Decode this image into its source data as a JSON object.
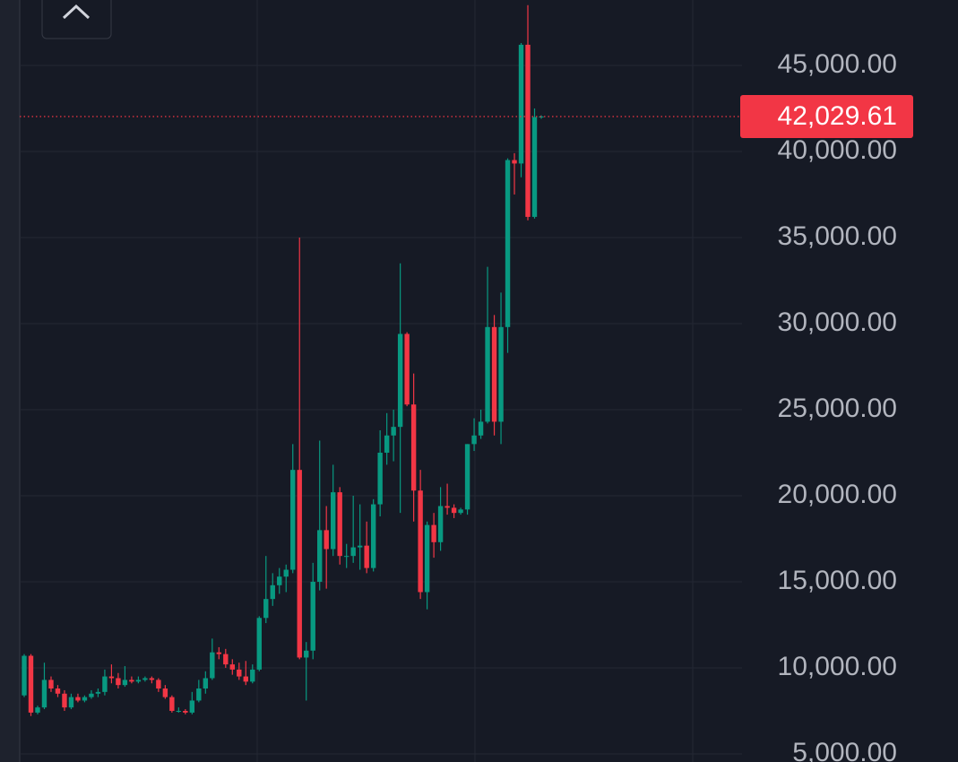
{
  "chart_data": {
    "type": "candlestick",
    "up_color": "#089981",
    "down_color": "#f23645",
    "open": [
      8400,
      10700,
      7400,
      7700,
      9300,
      8800,
      8500,
      7700,
      8300,
      8100,
      8300,
      8500,
      8600,
      9500,
      9400,
      9000,
      9300,
      9200,
      9300,
      9400,
      9300,
      8800,
      8300,
      7500,
      7500,
      7400,
      8100,
      8800,
      9400,
      10900,
      10800,
      10200,
      9900,
      9500,
      9200,
      9900,
      12900,
      14000,
      14800,
      15300,
      15700,
      21500,
      10600,
      11000,
      15000,
      18000,
      16900,
      20200,
      16500,
      16500,
      17000,
      17100,
      15800,
      19500,
      22500,
      23500,
      24000,
      29400,
      25300,
      20300,
      14400,
      18300,
      17300,
      19400,
      19300,
      19000,
      19200,
      23000,
      23500,
      24300,
      29800,
      24300,
      29800,
      39500,
      39300,
      46200,
      36200,
      42000
    ],
    "high": [
      10800,
      10800,
      7800,
      10300,
      9500,
      9000,
      8700,
      8500,
      8500,
      8400,
      8700,
      8800,
      9900,
      10200,
      9700,
      10100,
      9500,
      9500,
      9500,
      9500,
      9400,
      9000,
      8400,
      7700,
      7600,
      8600,
      9300,
      9800,
      11700,
      11200,
      11100,
      10500,
      10300,
      10400,
      10200,
      13000,
      16500,
      15500,
      15800,
      16000,
      23000,
      35000,
      11500,
      16100,
      23200,
      19400,
      21800,
      20500,
      17200,
      20000,
      19500,
      18500,
      19800,
      23800,
      24800,
      25000,
      33500,
      29500,
      27100,
      21500,
      18500,
      19000,
      20500,
      20700,
      19500,
      19300,
      23000,
      24500,
      25000,
      33300,
      30500,
      31800,
      39600,
      39900,
      46300,
      48500,
      42500,
      42100
    ],
    "low": [
      8300,
      7200,
      7300,
      7600,
      8600,
      8300,
      7500,
      7600,
      8000,
      8000,
      8200,
      8300,
      8400,
      9100,
      8800,
      8900,
      9100,
      9100,
      9200,
      9100,
      8600,
      8200,
      7400,
      7400,
      7300,
      7300,
      8000,
      8500,
      9300,
      10500,
      10000,
      9600,
      9300,
      9000,
      9100,
      9800,
      12600,
      13600,
      14300,
      14400,
      15500,
      10500,
      8100,
      10500,
      14500,
      14600,
      16500,
      16000,
      15800,
      16100,
      15700,
      15500,
      15600,
      18800,
      21800,
      22000,
      19000,
      25200,
      18500,
      14000,
      13400,
      16400,
      16800,
      18900,
      18700,
      18900,
      18900,
      22600,
      23300,
      24200,
      23500,
      23000,
      28300,
      37500,
      38500,
      36000,
      36100,
      41900
    ],
    "close": [
      10700,
      7400,
      7700,
      9300,
      8800,
      8500,
      7700,
      8300,
      8100,
      8300,
      8500,
      8600,
      9500,
      9400,
      9000,
      9300,
      9200,
      9300,
      9400,
      9300,
      8800,
      8300,
      7500,
      7500,
      7400,
      8100,
      8800,
      9400,
      10900,
      10800,
      10200,
      9900,
      9500,
      9200,
      9900,
      12900,
      14000,
      14800,
      15300,
      15700,
      21500,
      10600,
      11000,
      15000,
      18000,
      16900,
      20200,
      16500,
      16500,
      17000,
      17100,
      15800,
      19500,
      22500,
      23500,
      24000,
      29400,
      25300,
      20300,
      14400,
      18300,
      17300,
      19400,
      19300,
      19000,
      19200,
      23000,
      23500,
      24300,
      29800,
      24300,
      29800,
      39500,
      39300,
      46200,
      36200,
      42000,
      42030
    ],
    "ylim": [
      4530,
      48800
    ],
    "yticks": [
      {
        "value": 5000,
        "label": "5,000.00"
      },
      {
        "value": 10000,
        "label": "10,000.00"
      },
      {
        "value": 15000,
        "label": "15,000.00"
      },
      {
        "value": 20000,
        "label": "20,000.00"
      },
      {
        "value": 25000,
        "label": "25,000.00"
      },
      {
        "value": 30000,
        "label": "30,000.00"
      },
      {
        "value": 35000,
        "label": "35,000.00"
      },
      {
        "value": 40000,
        "label": "40,000.00"
      },
      {
        "value": 45000,
        "label": "45,000.00"
      }
    ],
    "grid": true,
    "last_price": {
      "value": 42029.61,
      "label": "42,029.61"
    }
  }
}
